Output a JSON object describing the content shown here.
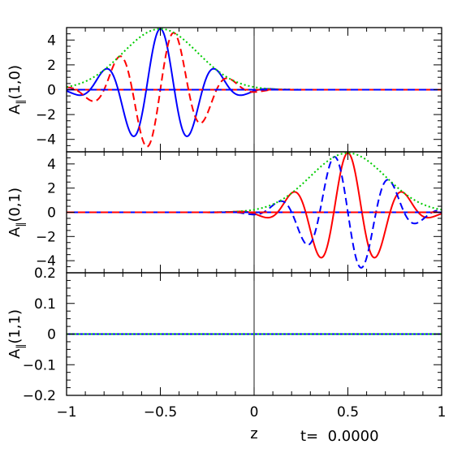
{
  "footer": {
    "xlabel": "z",
    "time_label": "t=  0.0000"
  },
  "chart_data": [
    {
      "type": "line",
      "ylabel": "A",
      "ylabel_sub": "‖",
      "ylabel_arg": "(1,0)",
      "xlim": [
        -1,
        1
      ],
      "ylim": [
        -5,
        5
      ],
      "yticks": [
        -4,
        -2,
        0,
        2,
        4
      ],
      "ytick_labels": [
        "−4",
        "−2",
        "0",
        "2",
        "4"
      ],
      "xticks": [
        -1,
        -0.5,
        0,
        0.5,
        1
      ],
      "grid": false,
      "packet": {
        "center": -0.5,
        "amplitude": 4.9,
        "wavelength": 0.3,
        "width": 0.2
      },
      "series": [
        {
          "color": "#0000ff",
          "dash": "solid",
          "kind": "cos",
          "sign": 1
        },
        {
          "color": "#ff0000",
          "dash": "dashed",
          "kind": "sin",
          "sign": 1
        },
        {
          "color": "#00cc00",
          "dash": "dotted",
          "kind": "envelope",
          "sign": 1
        },
        {
          "color": "#ff0000",
          "dash": "solid",
          "kind": "zero",
          "sign": 1
        },
        {
          "color": "#0000ff",
          "dash": "dashed",
          "kind": "zero",
          "sign": 1
        }
      ]
    },
    {
      "type": "line",
      "ylabel": "A",
      "ylabel_sub": "‖",
      "ylabel_arg": "(0,1)",
      "xlim": [
        -1,
        1
      ],
      "ylim": [
        -5,
        5
      ],
      "yticks": [
        -4,
        -2,
        0,
        2,
        4
      ],
      "ytick_labels": [
        "−4",
        "−2",
        "0",
        "2",
        "4"
      ],
      "xticks": [
        -1,
        -0.5,
        0,
        0.5,
        1
      ],
      "grid": false,
      "packet": {
        "center": 0.5,
        "amplitude": 4.9,
        "wavelength": 0.3,
        "width": 0.2
      },
      "series": [
        {
          "color": "#ff0000",
          "dash": "solid",
          "kind": "cos",
          "sign": 1
        },
        {
          "color": "#0000ff",
          "dash": "dashed",
          "kind": "sin",
          "sign": -1
        },
        {
          "color": "#00cc00",
          "dash": "dotted",
          "kind": "envelope",
          "sign": 1
        },
        {
          "color": "#0000ff",
          "dash": "solid",
          "kind": "zero",
          "sign": 1
        },
        {
          "color": "#ff0000",
          "dash": "dashed",
          "kind": "zero",
          "sign": 1
        }
      ]
    },
    {
      "type": "line",
      "ylabel": "A",
      "ylabel_sub": "‖",
      "ylabel_arg": "(1,1)",
      "xlim": [
        -1,
        1
      ],
      "ylim": [
        -0.2,
        0.2
      ],
      "yticks": [
        -0.2,
        -0.1,
        0,
        0.1,
        0.2
      ],
      "ytick_labels": [
        "−0.2",
        "−0.1",
        "0",
        "0.1",
        "0.2"
      ],
      "xticks": [
        -1,
        -0.5,
        0,
        0.5,
        1
      ],
      "xtick_labels": [
        "−1",
        "−0.5",
        "0",
        "0.5",
        "1"
      ],
      "grid": false,
      "series": [
        {
          "color": "#0000ff",
          "dash": "solid",
          "kind": "zero",
          "sign": 1
        },
        {
          "color": "#00cc00",
          "dash": "dotted",
          "kind": "zero",
          "sign": 1
        }
      ]
    }
  ]
}
